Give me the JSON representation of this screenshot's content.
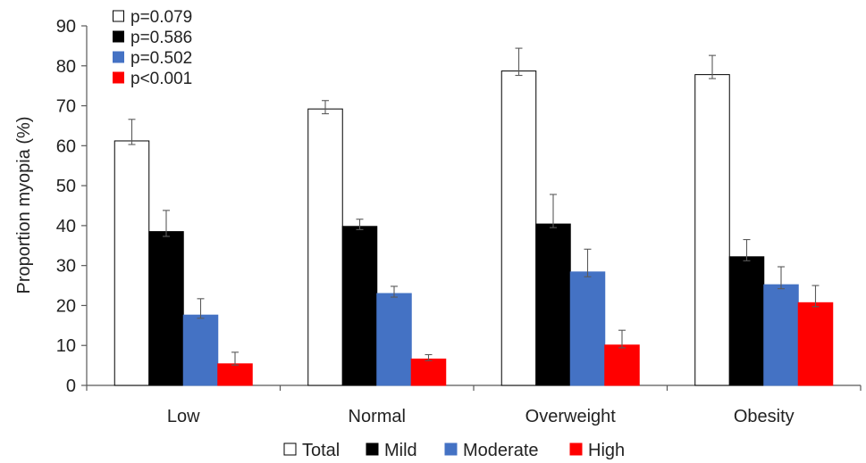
{
  "chart_data": {
    "type": "bar",
    "ylabel": "Proportion myopia (%)",
    "xlabel": "",
    "ylim": [
      0,
      90
    ],
    "yticks": [
      0,
      10,
      20,
      30,
      40,
      50,
      60,
      70,
      80,
      90
    ],
    "categories": [
      "Low",
      "Normal",
      "Overweight",
      "Obesity"
    ],
    "series": [
      {
        "name": "Total",
        "color": "#ffffff",
        "stroke": "#000000",
        "values": [
          61.2,
          69.2,
          78.7,
          77.8
        ],
        "error_high": [
          66.6,
          71.3,
          84.4,
          82.6
        ],
        "error_low": [
          60.3,
          68.0,
          77.6,
          76.8
        ]
      },
      {
        "name": "Mild",
        "color": "#000000",
        "stroke": "#000000",
        "values": [
          38.5,
          39.8,
          40.4,
          32.2
        ],
        "error_high": [
          43.8,
          41.6,
          47.8,
          36.5
        ],
        "error_low": [
          37.3,
          39.0,
          39.5,
          31.2
        ]
      },
      {
        "name": "Moderate",
        "color": "#4472c4",
        "stroke": "#4472c4",
        "values": [
          17.6,
          23.0,
          28.4,
          25.2
        ],
        "error_high": [
          21.7,
          24.8,
          34.1,
          29.7
        ],
        "error_low": [
          16.8,
          22.1,
          27.2,
          24.2
        ]
      },
      {
        "name": "High",
        "color": "#ff0000",
        "stroke": "#ff0000",
        "values": [
          5.4,
          6.6,
          10.1,
          20.7
        ],
        "error_high": [
          8.3,
          7.7,
          13.8,
          25.0
        ],
        "error_low": [
          5.1,
          6.2,
          9.4,
          19.7
        ]
      }
    ],
    "pvalue_legend": [
      {
        "series": "Total",
        "label": "p=0.079"
      },
      {
        "series": "Mild",
        "label": "p=0.586"
      },
      {
        "series": "Moderate",
        "label": "p=0.502"
      },
      {
        "series": "High",
        "label": "p<0.001"
      }
    ],
    "legend_position": "bottom",
    "pvalue_legend_position": "top-left",
    "grid": false
  }
}
